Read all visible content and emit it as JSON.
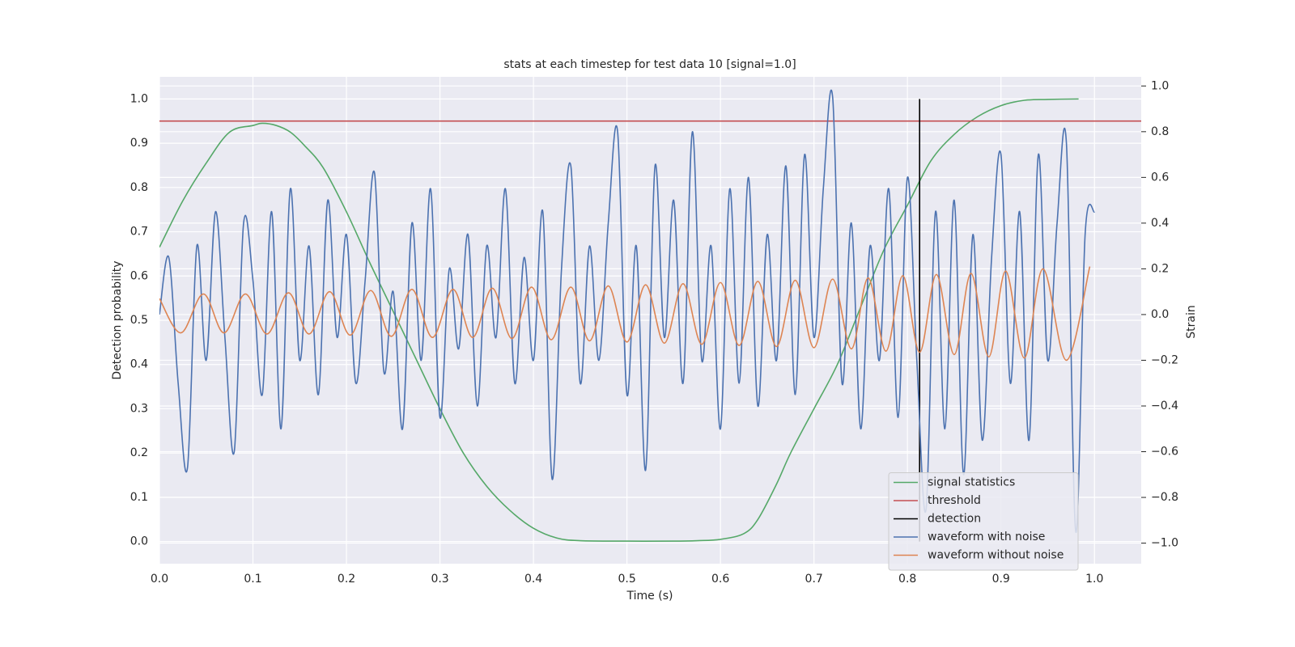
{
  "chart_data": {
    "type": "line",
    "title": "stats at each timestep for test data 10 [signal=1.0]",
    "xlabel": "Time (s)",
    "ylabel": "Detection probability",
    "y2label": "Strain",
    "xlim": [
      0,
      1.05
    ],
    "ylim": [
      -0.05,
      1.05
    ],
    "y2lim": [
      -1.09,
      1.04
    ],
    "xticks": [
      {
        "value": 0,
        "label": "0.0"
      },
      0.1,
      0.2,
      0.3,
      0.4,
      0.5,
      0.6,
      0.7,
      0.8,
      0.9,
      {
        "value": 1,
        "label": "1.0"
      }
    ],
    "yticks": [
      {
        "value": 0,
        "label": "0.0"
      },
      0.1,
      0.2,
      0.3,
      0.4,
      0.5,
      0.6,
      0.7,
      0.8,
      0.9,
      {
        "value": 1,
        "label": "1.0"
      }
    ],
    "y2ticks": [
      {
        "value": -1,
        "label": "−1.0"
      },
      {
        "value": -0.8,
        "label": "−0.8"
      },
      {
        "value": -0.6,
        "label": "−0.6"
      },
      {
        "value": -0.4,
        "label": "−0.4"
      },
      {
        "value": -0.2,
        "label": "−0.2"
      },
      {
        "value": 0,
        "label": "0.0"
      },
      0.2,
      0.4,
      0.6,
      0.8,
      {
        "value": 1,
        "label": "1.0"
      }
    ],
    "grid": true,
    "legend": "lower right",
    "series": [
      {
        "name": "signal statistics",
        "color": "#55a868",
        "x": [
          0,
          0.025,
          0.05,
          0.075,
          0.1,
          0.11,
          0.125,
          0.14,
          0.155,
          0.175,
          0.2,
          0.225,
          0.25,
          0.275,
          0.3,
          0.325,
          0.35,
          0.375,
          0.4,
          0.425,
          0.45,
          0.5,
          0.55,
          0.575,
          0.6,
          0.625,
          0.64,
          0.66,
          0.675,
          0.7,
          0.725,
          0.75,
          0.775,
          0.8,
          0.825,
          0.85,
          0.875,
          0.9,
          0.925,
          0.95,
          0.983
        ],
        "values": [
          0.665,
          0.77,
          0.855,
          0.925,
          0.94,
          0.945,
          0.94,
          0.925,
          0.895,
          0.845,
          0.745,
          0.63,
          0.52,
          0.41,
          0.3,
          0.2,
          0.125,
          0.07,
          0.03,
          0.008,
          0.002,
          0.001,
          0.001,
          0.002,
          0.005,
          0.018,
          0.05,
          0.13,
          0.2,
          0.3,
          0.4,
          0.53,
          0.66,
          0.76,
          0.86,
          0.92,
          0.96,
          0.985,
          0.997,
          0.999,
          1.0
        ]
      },
      {
        "name": "threshold",
        "color": "#c44e52",
        "x": [
          0,
          1.05
        ],
        "values": [
          0.95,
          0.95
        ]
      },
      {
        "name": "detection",
        "color": "#000000",
        "x": [
          0.813,
          0.813
        ],
        "values": [
          0,
          1
        ]
      },
      {
        "name": "waveform with noise",
        "color": "#4c72b0",
        "axis": "y2",
        "x": [
          0,
          0.01,
          0.02,
          0.03,
          0.04,
          0.05,
          0.06,
          0.07,
          0.08,
          0.09,
          0.1,
          0.11,
          0.12,
          0.13,
          0.14,
          0.15,
          0.16,
          0.17,
          0.18,
          0.19,
          0.2,
          0.21,
          0.22,
          0.23,
          0.24,
          0.25,
          0.26,
          0.27,
          0.28,
          0.29,
          0.3,
          0.31,
          0.32,
          0.33,
          0.34,
          0.35,
          0.36,
          0.37,
          0.38,
          0.39,
          0.4,
          0.41,
          0.42,
          0.43,
          0.44,
          0.45,
          0.46,
          0.47,
          0.48,
          0.49,
          0.5,
          0.51,
          0.52,
          0.53,
          0.54,
          0.55,
          0.56,
          0.57,
          0.58,
          0.59,
          0.6,
          0.61,
          0.62,
          0.63,
          0.64,
          0.65,
          0.66,
          0.67,
          0.68,
          0.69,
          0.7,
          0.71,
          0.72,
          0.73,
          0.74,
          0.75,
          0.76,
          0.77,
          0.78,
          0.79,
          0.8,
          0.81,
          0.82,
          0.83,
          0.84,
          0.85,
          0.86,
          0.87,
          0.88,
          0.89,
          0.9,
          0.91,
          0.92,
          0.93,
          0.94,
          0.95,
          0.96,
          0.97,
          0.98,
          0.99,
          1.0
        ],
        "values": [
          0.0,
          0.25,
          -0.3,
          -0.67,
          0.3,
          -0.2,
          0.45,
          -0.1,
          -0.6,
          0.4,
          0.15,
          -0.35,
          0.45,
          -0.5,
          0.55,
          -0.2,
          0.3,
          -0.35,
          0.5,
          -0.1,
          0.35,
          -0.3,
          0.15,
          0.62,
          -0.25,
          0.1,
          -0.5,
          0.4,
          -0.2,
          0.55,
          -0.45,
          0.2,
          -0.15,
          0.35,
          -0.4,
          0.3,
          -0.1,
          0.55,
          -0.3,
          0.25,
          -0.2,
          0.45,
          -0.72,
          0.2,
          0.65,
          -0.3,
          0.3,
          -0.2,
          0.4,
          0.8,
          -0.35,
          0.3,
          -0.68,
          0.65,
          -0.1,
          0.5,
          -0.3,
          0.8,
          -0.2,
          0.3,
          -0.5,
          0.55,
          -0.3,
          0.6,
          -0.4,
          0.35,
          -0.2,
          0.65,
          -0.35,
          0.7,
          -0.1,
          0.55,
          0.95,
          -0.3,
          0.4,
          -0.5,
          0.3,
          -0.2,
          0.55,
          -0.45,
          0.6,
          -0.2,
          -0.85,
          0.45,
          -0.5,
          0.5,
          -0.7,
          0.35,
          -0.55,
          0.25,
          0.7,
          -0.3,
          0.45,
          -0.55,
          0.7,
          -0.2,
          0.4,
          0.75,
          -0.95,
          0.35,
          0.45
        ]
      },
      {
        "name": "waveform without noise",
        "color": "#dd8452",
        "axis": "y2",
        "x": [
          0,
          0.023,
          0.047,
          0.069,
          0.092,
          0.115,
          0.138,
          0.16,
          0.182,
          0.204,
          0.226,
          0.248,
          0.27,
          0.292,
          0.314,
          0.335,
          0.356,
          0.377,
          0.398,
          0.419,
          0.44,
          0.46,
          0.48,
          0.5,
          0.52,
          0.54,
          0.56,
          0.58,
          0.6,
          0.62,
          0.64,
          0.66,
          0.68,
          0.7,
          0.72,
          0.74,
          0.758,
          0.777,
          0.795,
          0.813,
          0.831,
          0.85,
          0.868,
          0.887,
          0.905,
          0.925,
          0.945,
          0.97,
          0.995
        ],
        "values": [
          0.07,
          -0.08,
          0.09,
          -0.08,
          0.09,
          -0.085,
          0.095,
          -0.085,
          0.1,
          -0.09,
          0.105,
          -0.095,
          0.11,
          -0.1,
          0.11,
          -0.1,
          0.115,
          -0.105,
          0.12,
          -0.11,
          0.12,
          -0.115,
          0.125,
          -0.12,
          0.13,
          -0.125,
          0.135,
          -0.13,
          0.14,
          -0.135,
          0.145,
          -0.14,
          0.15,
          -0.145,
          0.155,
          -0.15,
          0.16,
          -0.16,
          0.17,
          -0.165,
          0.175,
          -0.175,
          0.18,
          -0.185,
          0.19,
          -0.19,
          0.2,
          -0.2,
          0.21
        ]
      }
    ]
  }
}
